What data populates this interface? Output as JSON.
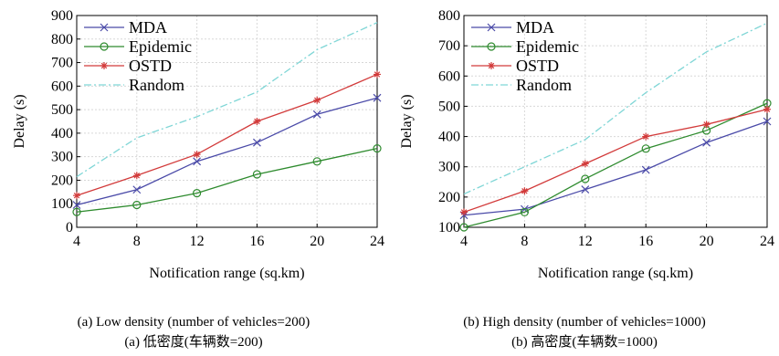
{
  "figure": {
    "captions": [
      {
        "en": "(a) Low density (number of vehicles=200)",
        "zh": "(a)  低密度(车辆数=200)"
      },
      {
        "en": "(b) High density (number of vehicles=1000)",
        "zh": "(b)  高密度(车辆数=1000)"
      }
    ]
  },
  "chart_data": [
    {
      "type": "line",
      "xlabel": "Notification range (sq.km)",
      "ylabel": "Delay (s)",
      "xlim": [
        4,
        24
      ],
      "ylim": [
        0,
        900
      ],
      "xticks": [
        4,
        8,
        12,
        16,
        20,
        24
      ],
      "yticks": [
        0,
        100,
        200,
        300,
        400,
        500,
        600,
        700,
        800,
        900
      ],
      "grid": true,
      "legend_position": "top-left",
      "x": [
        4,
        8,
        12,
        16,
        20,
        24
      ],
      "series": [
        {
          "name": "MDA",
          "color": "#4a4aa8",
          "marker": "x",
          "dash": "solid",
          "values": [
            95,
            160,
            280,
            360,
            480,
            550
          ]
        },
        {
          "name": "Epidemic",
          "color": "#2e8b2e",
          "marker": "circle",
          "dash": "solid",
          "values": [
            65,
            95,
            145,
            225,
            280,
            335
          ]
        },
        {
          "name": "OSTD",
          "color": "#d23a3a",
          "marker": "star",
          "dash": "solid",
          "values": [
            135,
            220,
            310,
            450,
            540,
            650
          ]
        },
        {
          "name": "Random",
          "color": "#7fd6d6",
          "marker": "none",
          "dash": "dashdot",
          "values": [
            215,
            380,
            470,
            575,
            755,
            870
          ]
        }
      ]
    },
    {
      "type": "line",
      "xlabel": "Notification range (sq.km)",
      "ylabel": "Delay (s)",
      "xlim": [
        4,
        24
      ],
      "ylim": [
        100,
        800
      ],
      "xticks": [
        4,
        8,
        12,
        16,
        20,
        24
      ],
      "yticks": [
        100,
        200,
        300,
        400,
        500,
        600,
        700,
        800
      ],
      "grid": true,
      "legend_position": "top-left",
      "x": [
        4,
        8,
        12,
        16,
        20,
        24
      ],
      "series": [
        {
          "name": "MDA",
          "color": "#4a4aa8",
          "marker": "x",
          "dash": "solid",
          "values": [
            140,
            160,
            225,
            290,
            380,
            450
          ]
        },
        {
          "name": "Epidemic",
          "color": "#2e8b2e",
          "marker": "circle",
          "dash": "solid",
          "values": [
            100,
            150,
            260,
            360,
            420,
            510
          ]
        },
        {
          "name": "OSTD",
          "color": "#d23a3a",
          "marker": "star",
          "dash": "solid",
          "values": [
            150,
            220,
            310,
            400,
            440,
            490
          ]
        },
        {
          "name": "Random",
          "color": "#7fd6d6",
          "marker": "none",
          "dash": "dashdot",
          "values": [
            210,
            300,
            390,
            545,
            680,
            775
          ]
        }
      ]
    }
  ]
}
